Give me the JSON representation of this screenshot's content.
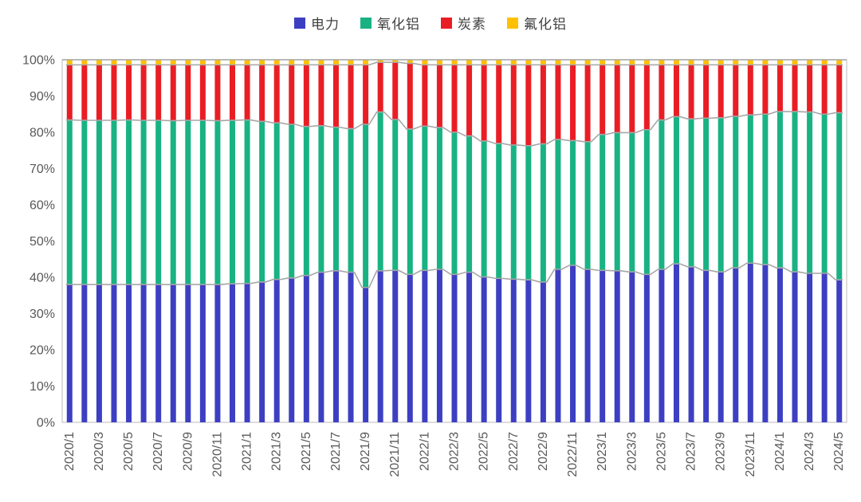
{
  "page": {
    "background": "#FFFFFF"
  },
  "legend": {
    "items": [
      {
        "label": "电力",
        "color": "#3D3FC2",
        "swatch": "blue-square-icon"
      },
      {
        "label": "氧化铝",
        "color": "#19B283",
        "swatch": "green-square-icon"
      },
      {
        "label": "炭素",
        "color": "#E91E25",
        "swatch": "red-square-icon"
      },
      {
        "label": "氟化铝",
        "color": "#FFC000",
        "swatch": "gold-square-icon"
      }
    ]
  },
  "chart_data": {
    "type": "bar",
    "subtype": "stacked-100-percent-column",
    "title": "",
    "xlabel": "",
    "ylabel": "",
    "ylim": [
      0,
      100
    ],
    "grid": false,
    "legend_position": "top-center",
    "axis_text_color": "#595959",
    "plot_border_color": "#C6C6C6",
    "series_line_color": "#A6A6A6",
    "ytick_labels": [
      "0%",
      "10%",
      "20%",
      "30%",
      "40%",
      "50%",
      "60%",
      "70%",
      "80%",
      "90%",
      "100%"
    ],
    "xtick_every": 2,
    "xtick_labels_shown": [
      "2020/1",
      "2020/3",
      "2020/5",
      "2020/7",
      "2020/9",
      "2020/11",
      "2021/1",
      "2021/3",
      "2021/5",
      "2021/7",
      "2021/9",
      "2021/11",
      "2022/1",
      "2022/3",
      "2022/5",
      "2022/7",
      "2022/9",
      "2022/11",
      "2023/1",
      "2023/3",
      "2023/5",
      "2023/7",
      "2023/9",
      "2023/11",
      "2024/1",
      "2024/3",
      "2024/5"
    ],
    "categories": [
      "2020/1",
      "2020/2",
      "2020/3",
      "2020/4",
      "2020/5",
      "2020/6",
      "2020/7",
      "2020/8",
      "2020/9",
      "2020/10",
      "2020/11",
      "2020/12",
      "2021/1",
      "2021/2",
      "2021/3",
      "2021/4",
      "2021/5",
      "2021/6",
      "2021/7",
      "2021/8",
      "2021/9",
      "2021/10",
      "2021/11",
      "2021/12",
      "2022/1",
      "2022/2",
      "2022/3",
      "2022/4",
      "2022/5",
      "2022/6",
      "2022/7",
      "2022/8",
      "2022/9",
      "2022/10",
      "2022/11",
      "2022/12",
      "2023/1",
      "2023/2",
      "2023/3",
      "2023/4",
      "2023/5",
      "2023/6",
      "2023/7",
      "2023/8",
      "2023/9",
      "2023/10",
      "2023/11",
      "2023/12",
      "2024/1",
      "2024/2",
      "2024/3",
      "2024/4",
      "2024/5"
    ],
    "series": [
      {
        "name": "电力",
        "color": "#3D3FC2",
        "values": [
          38.0,
          38.0,
          38.0,
          38.0,
          38.0,
          38.0,
          38.0,
          38.0,
          38.0,
          38.0,
          38.0,
          38.2,
          38.3,
          38.7,
          39.4,
          39.8,
          40.5,
          41.4,
          41.8,
          41.4,
          37.2,
          41.8,
          41.9,
          40.8,
          41.9,
          42.2,
          40.8,
          41.4,
          40.1,
          39.7,
          39.5,
          39.3,
          38.7,
          42.2,
          43.3,
          42.2,
          41.9,
          41.8,
          41.5,
          40.8,
          42.2,
          43.7,
          42.9,
          41.9,
          41.5,
          42.6,
          43.9,
          43.5,
          42.6,
          41.5,
          41.1,
          41.1,
          39.3
        ]
      },
      {
        "name": "氧化铝",
        "color": "#19B283",
        "values": [
          45.4,
          45.3,
          45.3,
          45.3,
          45.4,
          45.3,
          45.3,
          45.2,
          45.3,
          45.3,
          45.2,
          45.1,
          45.1,
          44.3,
          43.2,
          42.4,
          41.1,
          40.4,
          39.6,
          39.6,
          45.0,
          43.8,
          41.6,
          40.1,
          39.8,
          39.1,
          39.2,
          37.6,
          37.5,
          37.2,
          37.0,
          37.0,
          38.1,
          35.8,
          34.4,
          35.2,
          37.5,
          38.1,
          38.4,
          39.9,
          41.2,
          40.6,
          40.8,
          42.0,
          42.5,
          41.8,
          40.9,
          41.5,
          43.1,
          44.2,
          44.5,
          43.9,
          46.1
        ]
      },
      {
        "name": "炭素",
        "color": "#E91E25",
        "values": [
          15.2,
          15.3,
          15.3,
          15.3,
          15.2,
          15.3,
          15.3,
          15.4,
          15.3,
          15.3,
          15.4,
          15.3,
          15.2,
          15.6,
          16.0,
          16.4,
          17.0,
          16.8,
          17.2,
          17.6,
          16.4,
          13.7,
          15.8,
          18.1,
          16.9,
          17.3,
          18.6,
          19.6,
          21.0,
          21.7,
          22.1,
          22.3,
          21.8,
          20.6,
          20.9,
          21.2,
          19.2,
          18.7,
          18.7,
          17.9,
          15.2,
          14.3,
          14.9,
          14.7,
          14.6,
          14.2,
          13.8,
          13.6,
          12.9,
          12.9,
          13.0,
          13.6,
          13.2
        ]
      },
      {
        "name": "氟化铝",
        "color": "#FFC000",
        "values": [
          1.4,
          1.4,
          1.4,
          1.4,
          1.4,
          1.4,
          1.4,
          1.4,
          1.4,
          1.4,
          1.4,
          1.4,
          1.4,
          1.4,
          1.4,
          1.4,
          1.4,
          1.4,
          1.4,
          1.4,
          1.4,
          0.7,
          0.7,
          1.0,
          1.4,
          1.4,
          1.4,
          1.4,
          1.4,
          1.4,
          1.4,
          1.4,
          1.4,
          1.4,
          1.4,
          1.4,
          1.4,
          1.4,
          1.4,
          1.4,
          1.4,
          1.4,
          1.4,
          1.4,
          1.4,
          1.4,
          1.4,
          1.4,
          1.4,
          1.4,
          1.4,
          1.4,
          1.4
        ]
      }
    ]
  }
}
